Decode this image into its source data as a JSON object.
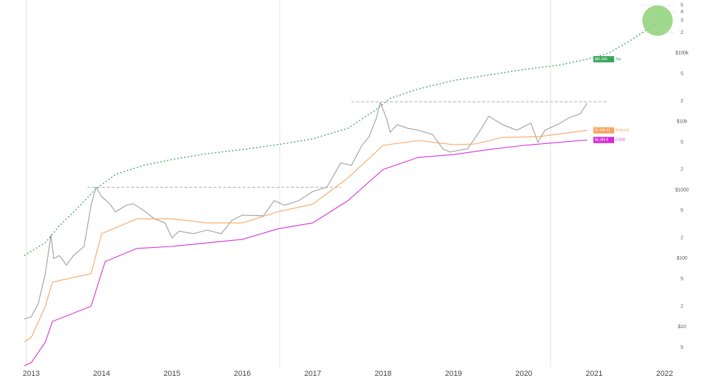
{
  "chart_data": {
    "type": "line",
    "log_y": true,
    "xlim": [
      2012.9,
      2022.1
    ],
    "xticks": [
      2013,
      2014,
      2015,
      2016,
      2017,
      2018,
      2019,
      2020,
      2021,
      2022
    ],
    "ylim": [
      2.6,
      600000
    ],
    "yticks": [
      5,
      {
        "value": 10,
        "label": "$10"
      },
      {
        "value": 20,
        "label": "2"
      },
      {
        "value": 50,
        "label": "5"
      },
      {
        "value": 100,
        "label": "$100"
      },
      {
        "value": 200,
        "label": "2"
      },
      {
        "value": 500,
        "label": "5"
      },
      {
        "value": 1000,
        "label": "$1000"
      },
      {
        "value": 2000,
        "label": "2"
      },
      {
        "value": 5000,
        "label": "5"
      },
      {
        "value": 10000,
        "label": "$10k"
      },
      {
        "value": 20000,
        "label": "2"
      },
      {
        "value": 50000,
        "label": "5"
      },
      {
        "value": 100000,
        "label": "$100k"
      },
      {
        "value": 200000,
        "label": "2"
      },
      {
        "value": 300000,
        "label": "3"
      },
      {
        "value": 400000,
        "label": "4"
      },
      {
        "value": 500000,
        "label": "5"
      }
    ],
    "vlines": [
      2012.93,
      2016.53,
      2020.38
    ],
    "reference_lines": [
      {
        "value": 1100,
        "x": [
          2013.8,
          2017.4
        ]
      },
      {
        "value": 19500,
        "x": [
          2017.55,
          2021.2
        ]
      }
    ],
    "marker": {
      "x": 2021.9,
      "y": 300000,
      "color": "#8fd17a"
    },
    "series": [
      {
        "color": "#9a9a9a",
        "style": "solid",
        "x": [
          2012.9,
          2013.0,
          2013.1,
          2013.2,
          2013.28,
          2013.32,
          2013.4,
          2013.5,
          2013.6,
          2013.75,
          2013.85,
          2013.92,
          2014.0,
          2014.1,
          2014.2,
          2014.35,
          2014.45,
          2014.6,
          2014.75,
          2014.9,
          2015.0,
          2015.1,
          2015.3,
          2015.5,
          2015.7,
          2015.85,
          2016.0,
          2016.3,
          2016.45,
          2016.6,
          2016.8,
          2017.0,
          2017.2,
          2017.4,
          2017.55,
          2017.7,
          2017.8,
          2017.9,
          2017.96,
          2018.05,
          2018.1,
          2018.2,
          2018.35,
          2018.5,
          2018.7,
          2018.85,
          2018.95,
          2019.2,
          2019.4,
          2019.5,
          2019.7,
          2019.9,
          2020.1,
          2020.2,
          2020.3,
          2020.5,
          2020.65,
          2020.8,
          2020.9
        ],
        "values": [
          13,
          14,
          22,
          60,
          220,
          100,
          110,
          80,
          110,
          150,
          600,
          1100,
          800,
          650,
          480,
          600,
          630,
          500,
          380,
          330,
          200,
          250,
          230,
          260,
          230,
          360,
          430,
          420,
          700,
          600,
          700,
          950,
          1100,
          2500,
          2300,
          4500,
          6000,
          11000,
          19000,
          11000,
          7000,
          9000,
          8000,
          7500,
          6500,
          4000,
          3600,
          4000,
          8000,
          12000,
          9000,
          7500,
          9500,
          5000,
          7500,
          9300,
          11500,
          13000,
          18500
        ]
      },
      {
        "name": "Top",
        "color": "#3aa65a",
        "style": "dotted",
        "tag": {
          "value": 81645,
          "label": "$81,645"
        },
        "x": [
          2012.9,
          2013.2,
          2013.4,
          2013.7,
          2013.9,
          2014.2,
          2014.6,
          2015.0,
          2015.5,
          2016.0,
          2016.5,
          2017.0,
          2017.5,
          2017.9,
          2018.1,
          2018.5,
          2019.0,
          2019.5,
          2020.0,
          2020.5,
          2020.9,
          2021.2,
          2021.5,
          2021.9
        ],
        "values": [
          110,
          170,
          300,
          600,
          1000,
          1700,
          2300,
          2800,
          3400,
          3900,
          4600,
          5600,
          8000,
          15000,
          22000,
          30000,
          40000,
          48000,
          58000,
          67000,
          82000,
          100000,
          150000,
          280000
        ]
      },
      {
        "name": "Realized",
        "color": "#f7a35c",
        "style": "solid",
        "tag": {
          "value": 7456.43,
          "label": "$7,456.43"
        },
        "x": [
          2012.9,
          2013.0,
          2013.2,
          2013.3,
          2013.85,
          2014.0,
          2014.5,
          2015.0,
          2015.5,
          2016.0,
          2016.5,
          2017.0,
          2017.5,
          2018.0,
          2018.5,
          2019.0,
          2019.3,
          2019.7,
          2020.2,
          2020.9
        ],
        "values": [
          6,
          7,
          20,
          45,
          60,
          230,
          380,
          380,
          330,
          330,
          480,
          620,
          1500,
          4500,
          5300,
          4600,
          4700,
          5900,
          6000,
          7456
        ]
      },
      {
        "name": "CVDD",
        "color": "#d62ad6",
        "style": "solid",
        "tag": {
          "value": 5389.8,
          "label": "$5,389.8"
        },
        "x": [
          2012.9,
          2013.0,
          2013.2,
          2013.3,
          2013.85,
          2014.05,
          2014.5,
          2015.0,
          2016.0,
          2016.5,
          2017.0,
          2017.5,
          2018.0,
          2018.5,
          2019.0,
          2019.5,
          2020.0,
          2020.9
        ],
        "values": [
          2.7,
          3,
          6,
          12,
          20,
          90,
          140,
          150,
          190,
          270,
          330,
          700,
          2000,
          3000,
          3300,
          3900,
          4500,
          5390
        ]
      }
    ]
  }
}
